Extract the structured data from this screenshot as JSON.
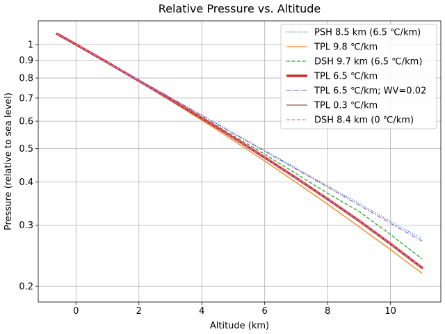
{
  "chart_data": {
    "type": "line",
    "title": "Relative Pressure vs. Altitude",
    "xlabel": "Altitude (km)",
    "ylabel": "Pressure (relative to sea level)",
    "xlim": [
      -1.2,
      11.6
    ],
    "ylim": [
      0.18,
      1.17
    ],
    "yscale": "log",
    "grid": true,
    "legend_position": "top-right",
    "xticks": [
      0,
      2,
      4,
      6,
      8,
      10
    ],
    "xtick_labels": [
      "0",
      "2",
      "4",
      "6",
      "8",
      "10"
    ],
    "yticks": [
      1,
      0.9,
      0.8,
      0.7,
      0.6,
      0.5,
      0.4,
      0.3,
      0.2
    ],
    "ytick_labels": [
      "1",
      "0.9",
      "0.8",
      "0.7",
      "0.6",
      "0.5",
      "0.4",
      "0.3",
      "0.2"
    ],
    "x": [
      -0.6,
      0,
      1,
      2,
      3,
      4,
      5,
      6,
      7,
      8,
      9,
      10,
      11
    ],
    "series": [
      {
        "name": "PSH 8.5 km (6.5 ℃/km)",
        "color": "#1f77b4",
        "style": "dotted",
        "width": 1.3,
        "values": [
          1.073,
          1.0,
          0.889,
          0.79,
          0.703,
          0.625,
          0.555,
          0.494,
          0.439,
          0.39,
          0.347,
          0.308,
          0.274
        ]
      },
      {
        "name": "TPL 9.8 ℃/km",
        "color": "#ff7f0e",
        "style": "solid",
        "width": 1.3,
        "values": [
          1.073,
          1.0,
          0.885,
          0.782,
          0.688,
          0.604,
          0.528,
          0.46,
          0.399,
          0.345,
          0.297,
          0.255,
          0.218
        ]
      },
      {
        "name": "DSH 9.7 km (6.5 ℃/km)",
        "color": "#2ca02c",
        "style": "dashed",
        "width": 1.3,
        "values": [
          1.073,
          1.0,
          0.887,
          0.786,
          0.698,
          0.617,
          0.545,
          0.481,
          0.423,
          0.371,
          0.329,
          0.282,
          0.24
        ]
      },
      {
        "name": "TPL 6.5 ℃/km",
        "color": "#d62728",
        "style": "solid",
        "width": 3.5,
        "values": [
          1.073,
          1.0,
          0.887,
          0.785,
          0.694,
          0.612,
          0.538,
          0.471,
          0.411,
          0.357,
          0.309,
          0.265,
          0.226
        ]
      },
      {
        "name": "TPL 6.5 ℃/km; WV=0.02",
        "color": "#9467bd",
        "style": "dashdot",
        "width": 1.3,
        "values": [
          1.073,
          1.0,
          0.889,
          0.79,
          0.702,
          0.623,
          0.553,
          0.491,
          0.436,
          0.387,
          0.343,
          0.304,
          0.27
        ]
      },
      {
        "name": "TPL 0.3 ℃/km",
        "color": "#8c564b",
        "style": "solid",
        "width": 1.3,
        "values": [
          1.073,
          1.0,
          0.886,
          0.784,
          0.693,
          0.611,
          0.537,
          0.47,
          0.41,
          0.356,
          0.308,
          0.264,
          0.225
        ]
      },
      {
        "name": "DSH 8.4 km (0 ℃/km)",
        "color": "#e377c2",
        "style": "dashed",
        "width": 1.3,
        "values": [
          1.073,
          1.0,
          0.887,
          0.785,
          0.694,
          0.612,
          0.538,
          0.471,
          0.411,
          0.357,
          0.309,
          0.265,
          0.226
        ]
      }
    ]
  }
}
